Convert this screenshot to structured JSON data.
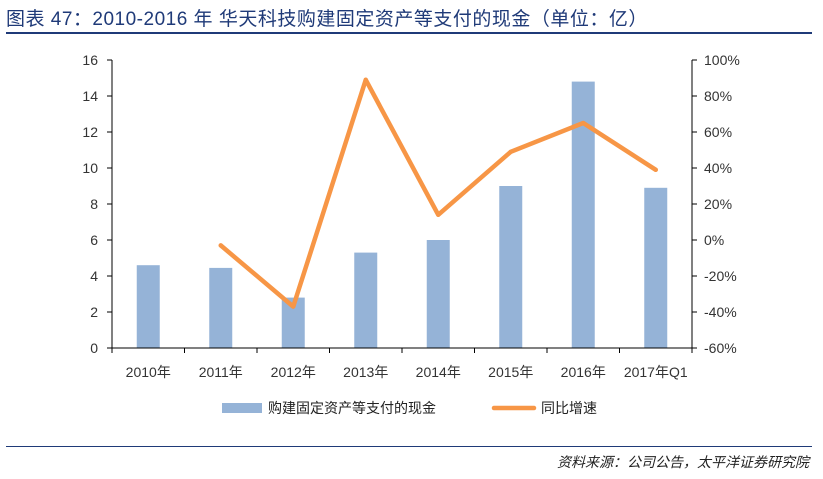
{
  "header": {
    "title": "图表 47：2010-2016 年 华天科技购建固定资产等支付的现金（单位：亿）"
  },
  "footer": {
    "source": "资料来源：公司公告，太平洋证券研究院"
  },
  "colors": {
    "bar": "#95b3d7",
    "line": "#f79646",
    "axis": "#000000",
    "title": "#1f3a78"
  },
  "chart_data": {
    "type": "bar",
    "categories": [
      "2010年",
      "2011年",
      "2012年",
      "2013年",
      "2014年",
      "2015年",
      "2016年",
      "2017年Q1"
    ],
    "series": [
      {
        "name": "购建固定资产等支付的现金",
        "type": "bar",
        "axis": "left",
        "values": [
          4.6,
          4.45,
          2.8,
          5.3,
          6.0,
          9.0,
          14.8,
          8.9
        ]
      },
      {
        "name": "同比增速",
        "type": "line",
        "axis": "right",
        "values": [
          null,
          -3,
          -37,
          89,
          14,
          49,
          65,
          39
        ]
      }
    ],
    "ylim_left": [
      0,
      16
    ],
    "yticks_left": [
      "0",
      "2",
      "4",
      "6",
      "8",
      "10",
      "12",
      "14",
      "16"
    ],
    "ylim_right": [
      -60,
      100
    ],
    "yticks_right": [
      "-60%",
      "-40%",
      "-20%",
      "0%",
      "20%",
      "40%",
      "60%",
      "80%",
      "100%"
    ],
    "grid": false,
    "legend_position": "bottom"
  }
}
